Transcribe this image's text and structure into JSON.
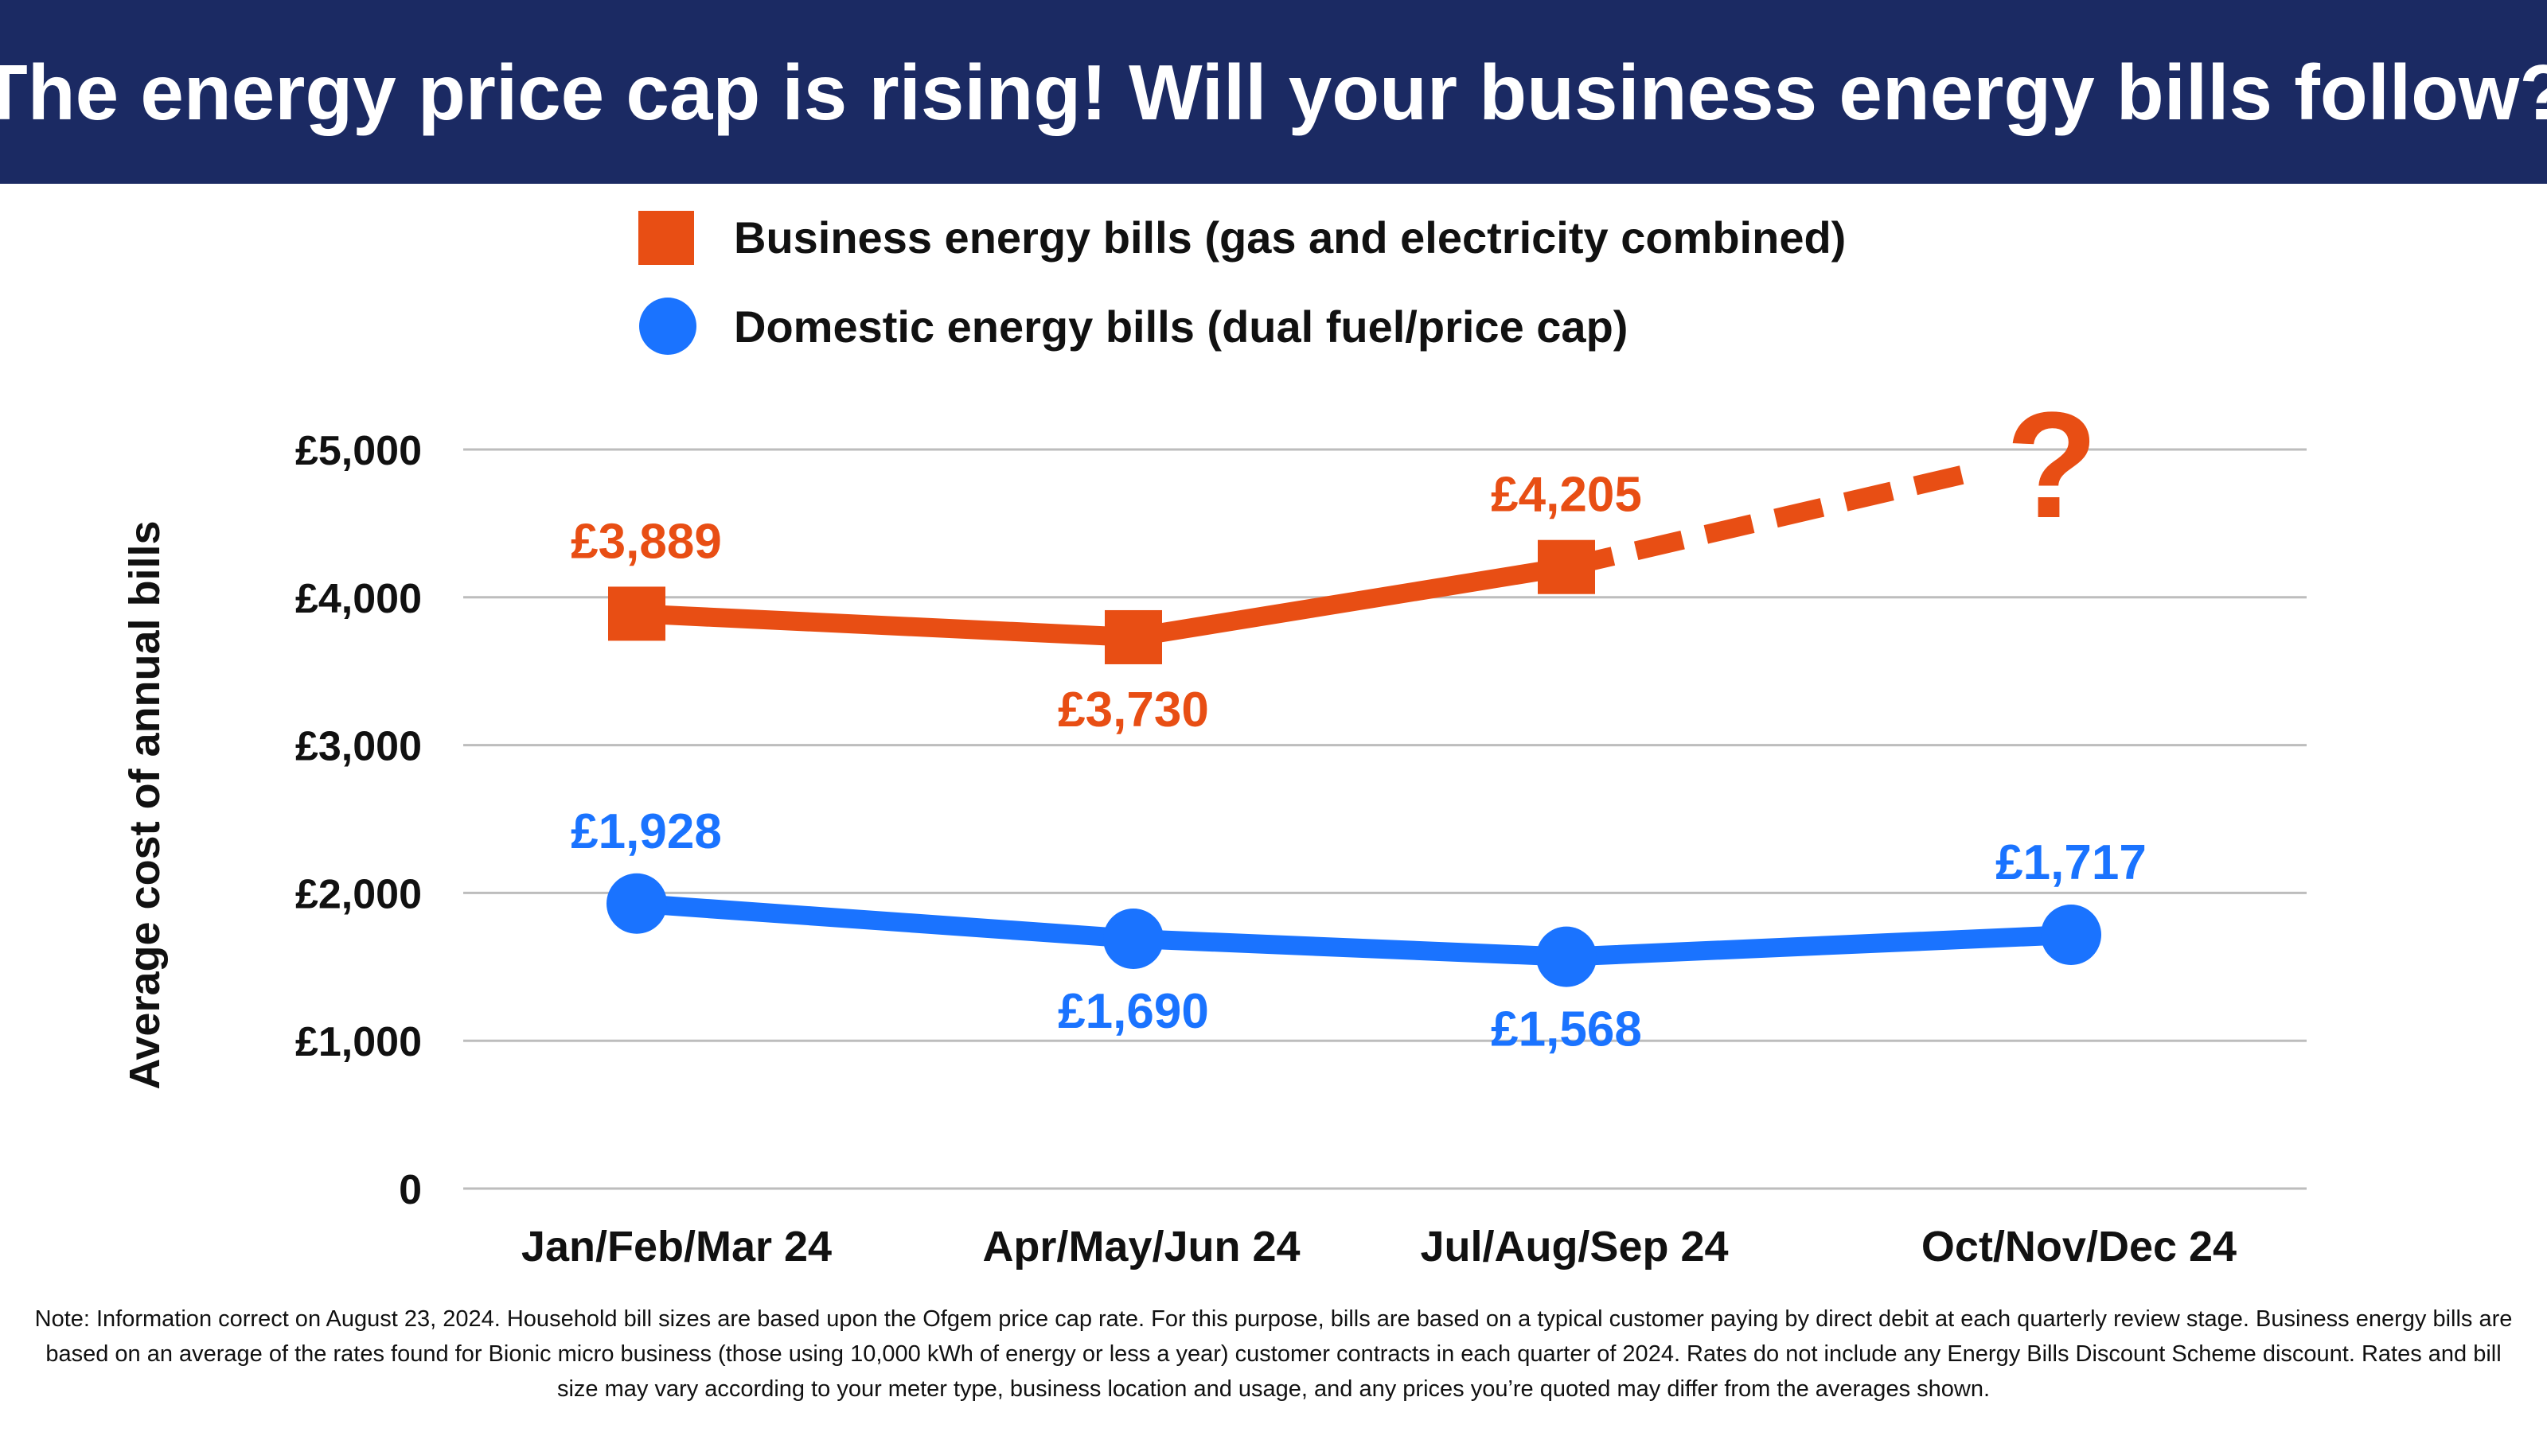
{
  "header": {
    "title": "The energy price cap is rising! Will your business energy bills follow?"
  },
  "colors": {
    "header_bg": "#1b2a63",
    "business": "#e84e14",
    "domestic": "#1a73ff",
    "grid": "#bdbdbd",
    "text": "#111111"
  },
  "chart_data": {
    "type": "line",
    "title": "The energy price cap is rising! Will your business energy bills follow?",
    "ylabel": "Average cost of annual bills",
    "xlabel": "",
    "ylim": [
      0,
      5000
    ],
    "yticks": [
      0,
      1000,
      2000,
      3000,
      4000,
      5000
    ],
    "ytick_labels": [
      "0",
      "£1,000",
      "£2,000",
      "£3,000",
      "£4,000",
      "£5,000"
    ],
    "categories": [
      "Jan/Feb/Mar 24",
      "Apr/May/Jun 24",
      "Jul/Aug/Sep 24",
      "Oct/Nov/Dec 24"
    ],
    "grid": true,
    "legend_placement": "top",
    "series": [
      {
        "name": "Business energy bills (gas and electricity combined)",
        "marker": "square",
        "values": [
          3889,
          3730,
          4205,
          null
        ],
        "labels": [
          "£3,889",
          "£3,730",
          "£4,205",
          ""
        ],
        "label_positions": [
          "above",
          "below",
          "above",
          ""
        ],
        "projection": {
          "from_category": "Jul/Aug/Sep 24",
          "style": "dashed",
          "annotation": "?"
        }
      },
      {
        "name": "Domestic energy bills (dual fuel/price cap)",
        "marker": "circle",
        "values": [
          1928,
          1690,
          1568,
          1717
        ],
        "labels": [
          "£1,928",
          "£1,690",
          "£1,568",
          "£1,717"
        ],
        "label_positions": [
          "above",
          "below",
          "below",
          "above"
        ]
      }
    ]
  },
  "note": "Note: Information correct on August 23, 2024. Household bill sizes are based upon the Ofgem price cap rate. For this purpose, bills are based on a typical customer paying by direct debit at each quarterly review stage. Business energy bills are based on an average of the rates found for Bionic micro business (those using 10,000 kWh of energy or less a year) customer contracts in each quarter of 2024. Rates do not include any Energy Bills Discount Scheme discount.  Rates and bill size may vary according to your meter type, business location and usage, and any prices you’re quoted may differ from the averages shown."
}
